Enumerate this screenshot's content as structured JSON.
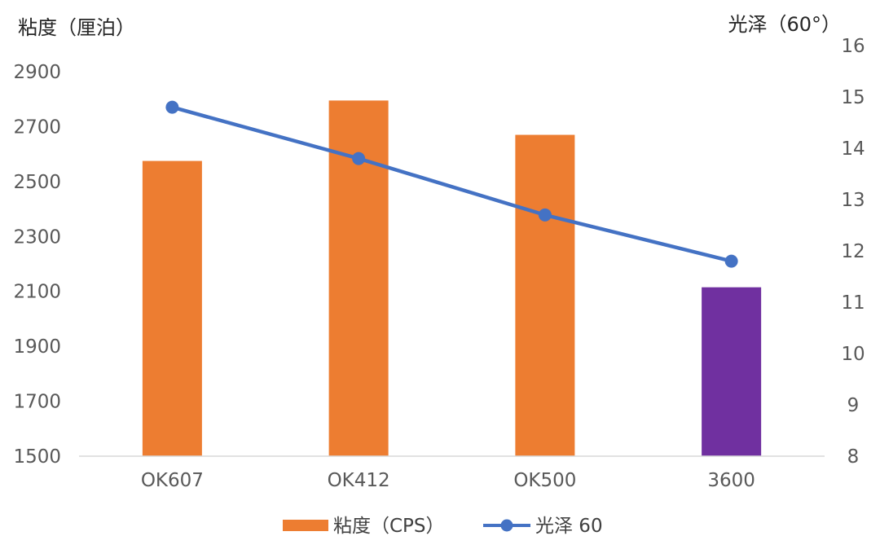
{
  "chart_data": {
    "type": "bar",
    "categories": [
      "OK607",
      "OK412",
      "OK500",
      "3600"
    ],
    "ylabel_left": "粘度（厘泊）",
    "ylabel_right": "光泽（60°）",
    "y_left_range": [
      1500,
      2900
    ],
    "y_left_ticks": [
      1500,
      1700,
      1900,
      2100,
      2300,
      2500,
      2700,
      2900
    ],
    "y_right_range": [
      8,
      16
    ],
    "y_right_ticks": [
      8,
      9,
      10,
      11,
      12,
      13,
      14,
      15,
      16
    ],
    "series": [
      {
        "name": "粘度（CPS）",
        "kind": "bar",
        "axis": "left",
        "values": [
          2575,
          2795,
          2670,
          2115
        ],
        "colors": [
          "#ED7D31",
          "#ED7D31",
          "#ED7D31",
          "#7030A0"
        ]
      },
      {
        "name": "光泽 60",
        "kind": "line",
        "axis": "right",
        "values": [
          14.8,
          13.8,
          12.7,
          11.8
        ],
        "color": "#4472C4"
      }
    ],
    "grid": false,
    "legend_position": "bottom"
  }
}
